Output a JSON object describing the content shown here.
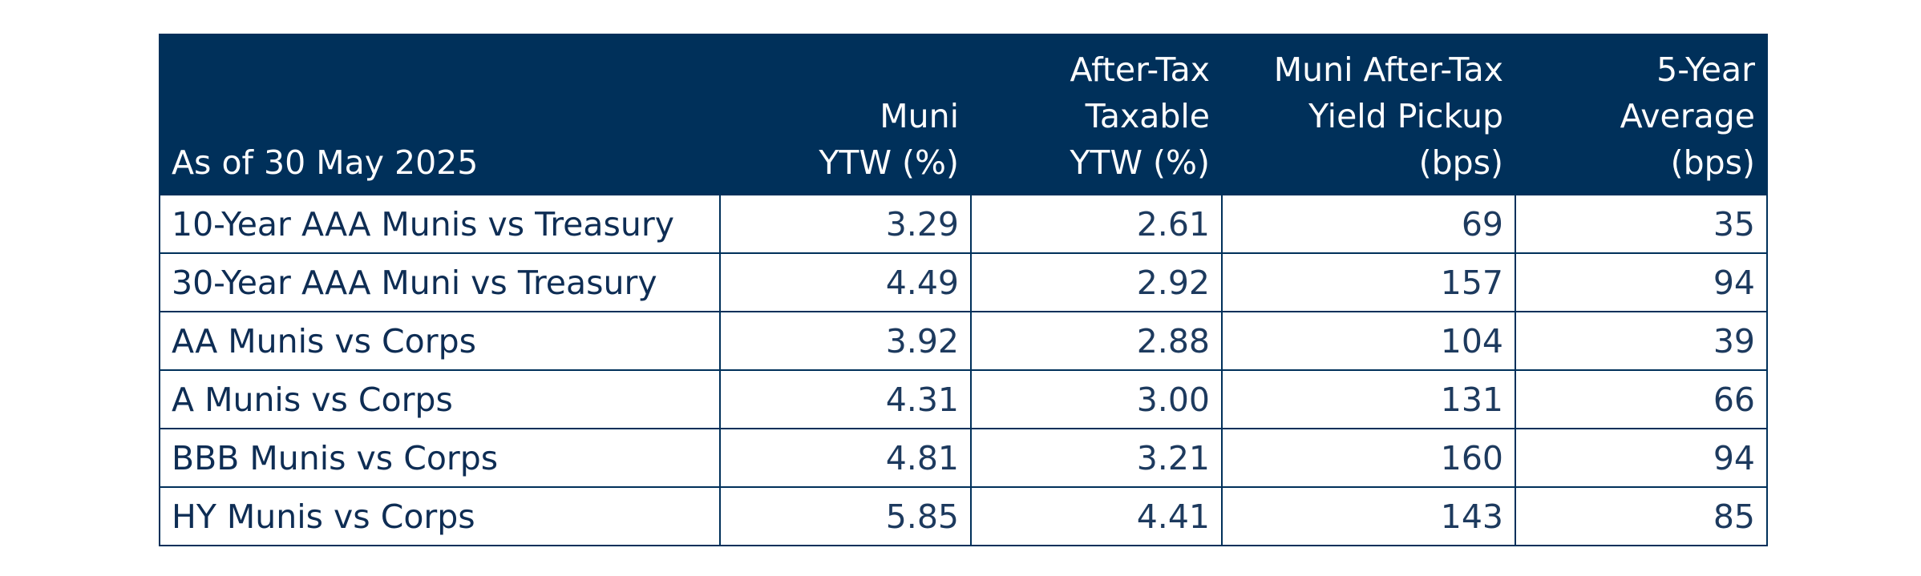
{
  "chart_data": {
    "type": "table",
    "columns": [
      {
        "lines": [
          "As of 30 May 2025"
        ]
      },
      {
        "lines": [
          "Muni",
          "YTW (%)"
        ]
      },
      {
        "lines": [
          "After-Tax",
          "Taxable",
          "YTW (%)"
        ]
      },
      {
        "lines": [
          "Muni After-Tax",
          "Yield Pickup",
          "(bps)"
        ]
      },
      {
        "lines": [
          "5-Year",
          "Average",
          "(bps)"
        ]
      }
    ],
    "rows": [
      {
        "label": "10-Year AAA Munis vs Treasury",
        "values": [
          "3.29",
          "2.61",
          "69",
          "35"
        ]
      },
      {
        "label": "30-Year AAA Muni vs Treasury",
        "values": [
          "4.49",
          "2.92",
          "157",
          "94"
        ]
      },
      {
        "label": "AA Munis vs Corps",
        "values": [
          "3.92",
          "2.88",
          "104",
          "39"
        ]
      },
      {
        "label": "A Munis vs Corps",
        "values": [
          "4.31",
          "3.00",
          "131",
          "66"
        ]
      },
      {
        "label": "BBB Munis vs Corps",
        "values": [
          "4.81",
          "3.21",
          "160",
          "94"
        ]
      },
      {
        "label": "HY Munis vs Corps",
        "values": [
          "5.85",
          "4.41",
          "143",
          "85"
        ]
      }
    ],
    "colors": {
      "header_bg": "#00305a",
      "header_text": "#ffffff",
      "body_text": "#12335a",
      "border": "#00305a"
    }
  }
}
